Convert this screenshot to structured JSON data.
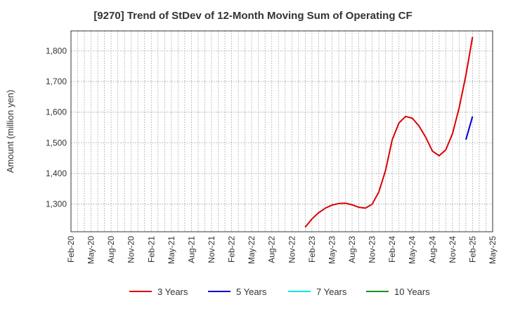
{
  "chart_data": {
    "type": "line",
    "title": "[9270]  Trend of StDev of 12-Month Moving Sum of Operating CF",
    "ylabel": "Amount (million yen)",
    "xlabel": "",
    "ylim": [
      1210,
      1865
    ],
    "y_ticks": [
      1300,
      1400,
      1500,
      1600,
      1700,
      1800
    ],
    "y_tick_labels": [
      "1,300",
      "1,400",
      "1,500",
      "1,600",
      "1,700",
      "1,800"
    ],
    "x_start": "2020-02",
    "x_end": "2025-05",
    "x_ticks": [
      "2020-02",
      "2020-05",
      "2020-08",
      "2020-11",
      "2021-02",
      "2021-05",
      "2021-08",
      "2021-11",
      "2022-02",
      "2022-05",
      "2022-08",
      "2022-11",
      "2023-02",
      "2023-05",
      "2023-08",
      "2023-11",
      "2024-02",
      "2024-05",
      "2024-08",
      "2024-11",
      "2025-02",
      "2025-05"
    ],
    "x_tick_labels": [
      "Feb-20",
      "May-20",
      "Aug-20",
      "Nov-20",
      "Feb-21",
      "May-21",
      "Aug-21",
      "Nov-21",
      "Feb-22",
      "May-22",
      "Aug-22",
      "Nov-22",
      "Feb-23",
      "May-23",
      "Aug-23",
      "Nov-23",
      "Feb-24",
      "May-24",
      "Aug-24",
      "Nov-24",
      "Feb-25",
      "May-25"
    ],
    "grid": true,
    "legend_position": "bottom",
    "series": [
      {
        "name": "3 Years",
        "color": "#dd0000",
        "x": [
          "2023-01",
          "2023-02",
          "2023-03",
          "2023-04",
          "2023-05",
          "2023-06",
          "2023-07",
          "2023-08",
          "2023-09",
          "2023-10",
          "2023-11",
          "2023-12",
          "2024-01",
          "2024-02",
          "2024-03",
          "2024-04",
          "2024-05",
          "2024-06",
          "2024-07",
          "2024-08",
          "2024-09",
          "2024-10",
          "2024-11",
          "2024-12",
          "2025-01",
          "2025-02"
        ],
        "y": [
          1225,
          1252,
          1272,
          1287,
          1297,
          1302,
          1303,
          1298,
          1290,
          1287,
          1300,
          1340,
          1410,
          1510,
          1565,
          1586,
          1580,
          1555,
          1518,
          1473,
          1458,
          1477,
          1530,
          1615,
          1720,
          1845
        ]
      },
      {
        "name": "5 Years",
        "color": "#0000cc",
        "x": [
          "2025-01",
          "2025-02"
        ],
        "y": [
          1510,
          1586
        ]
      },
      {
        "name": "7 Years",
        "color": "#00e5ee",
        "x": [],
        "y": []
      },
      {
        "name": "10 Years",
        "color": "#228b22",
        "x": [],
        "y": []
      }
    ]
  }
}
